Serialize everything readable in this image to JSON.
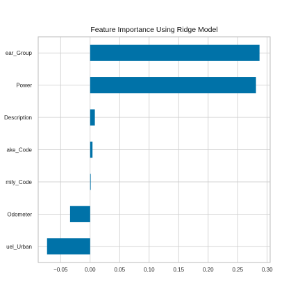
{
  "chart_data": {
    "type": "bar",
    "orientation": "horizontal",
    "title": "Feature Importance Using Ridge Model",
    "xlabel": "",
    "ylabel": "",
    "categories": [
      "ear_Group",
      "Power",
      "Description",
      "ake_Code",
      "mily_Code",
      "Odometer",
      "uel_Urban"
    ],
    "values": [
      0.287,
      0.281,
      0.008,
      0.004,
      0.001,
      -0.034,
      -0.073
    ],
    "xlim": [
      -0.088,
      0.305
    ],
    "xticks": [
      -0.05,
      0.0,
      0.05,
      0.1,
      0.15,
      0.2,
      0.25,
      0.3
    ],
    "xtick_labels": [
      "−0.05",
      "0.00",
      "0.05",
      "0.10",
      "0.15",
      "0.20",
      "0.25",
      "0.30"
    ],
    "grid": true,
    "bar_color": "#0072a8",
    "grid_color": "#cccccc",
    "spine_color": "#bbbbbb"
  }
}
